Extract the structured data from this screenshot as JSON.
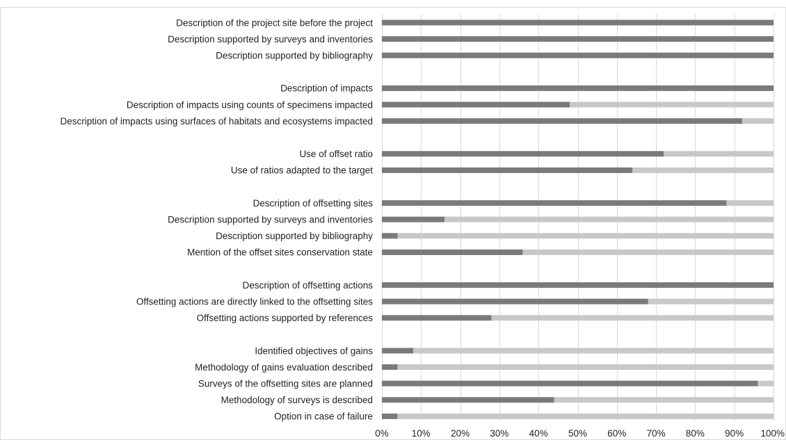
{
  "chart_data": {
    "type": "bar",
    "orientation": "horizontal",
    "stacked": true,
    "percent": true,
    "categories": [
      "Description of the project site before the project",
      "Description supported by surveys and inventories",
      "Description supported by bibliography",
      "Description of impacts",
      "Description of impacts using counts of specimens impacted",
      "Description of impacts using surfaces of habitats and ecosystems impacted",
      "Use of offset ratio",
      "Use of ratios adapted to the target",
      "Description of offsetting sites",
      "Description supported by surveys and inventories",
      "Description supported by bibliography",
      "Mention of the offset sites conservation state",
      "Description of offsetting actions",
      "Offsetting actions are directly linked to the offsetting sites",
      "Offsetting actions supported by references",
      "Identified objectives of gains",
      "Methodology of gains evaluation described",
      "Surveys of the offsetting sites are planned",
      "Methodology of surveys is described",
      "Option in case of failure"
    ],
    "groups": [
      3,
      3,
      2,
      4,
      3,
      5
    ],
    "series": [
      {
        "values": [
          100,
          100,
          100,
          100,
          48,
          92,
          72,
          64,
          88,
          16,
          4,
          36,
          100,
          68,
          28,
          8,
          4,
          96,
          44,
          4
        ],
        "color": "#7a7a7c"
      },
      {
        "values": [
          0,
          0,
          0,
          0,
          52,
          8,
          28,
          36,
          12,
          84,
          96,
          64,
          0,
          32,
          72,
          92,
          96,
          4,
          56,
          96
        ],
        "color": "#c8c8c8"
      }
    ],
    "xlim": [
      0,
      100
    ],
    "xticks": [
      "0%",
      "10%",
      "20%",
      "30%",
      "40%",
      "50%",
      "60%",
      "70%",
      "80%",
      "90%",
      "100%"
    ],
    "grid": true,
    "title": "",
    "xlabel": "",
    "ylabel": ""
  }
}
